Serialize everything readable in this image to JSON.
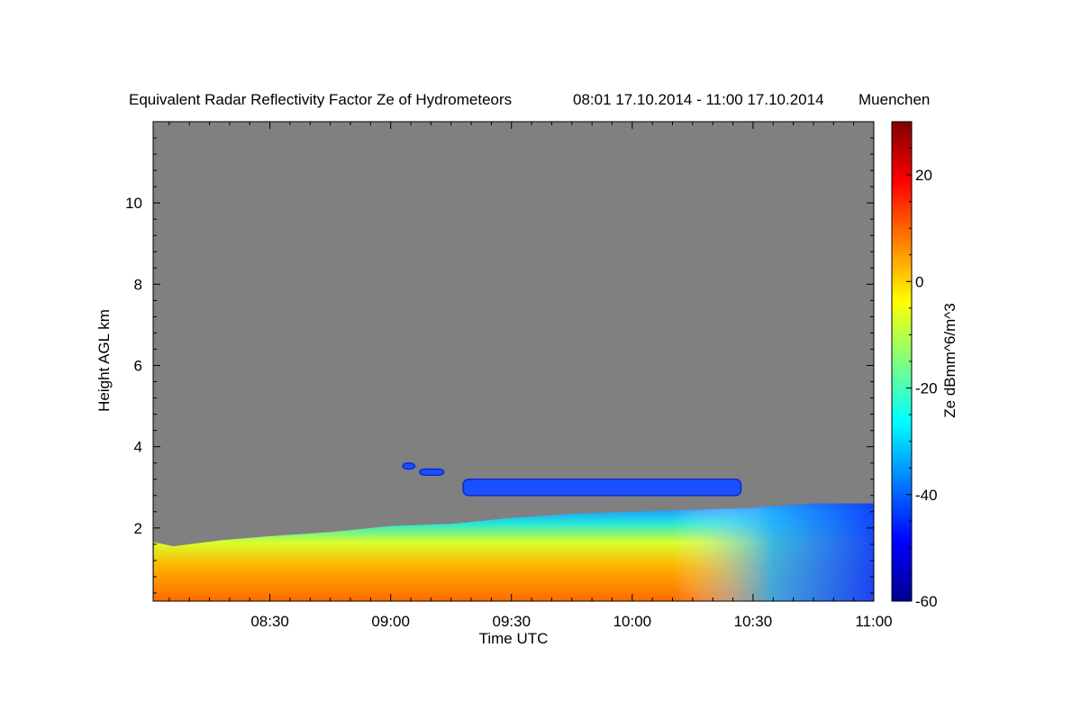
{
  "chart_data": {
    "type": "heatmap",
    "title": "Equivalent Radar Reflectivity Factor Ze of Hydrometeors",
    "time_range_label": "08:01 17.10.2014 - 11:00 17.10.2014",
    "location": "Muenchen",
    "xlabel": "Time UTC",
    "ylabel": "Height AGL km",
    "x_ticks": [
      "08:30",
      "09:00",
      "09:30",
      "10:00",
      "10:30",
      "11:00"
    ],
    "x_tick_hours": [
      8.5,
      9.0,
      9.5,
      10.0,
      10.5,
      11.0
    ],
    "xlim_hours": [
      8.0167,
      11.0
    ],
    "y_ticks": [
      "2",
      "4",
      "6",
      "8",
      "10"
    ],
    "y_tick_values": [
      2,
      4,
      6,
      8,
      10
    ],
    "ylim": [
      0.2,
      12.0
    ],
    "background_color": "#808080",
    "colorbar": {
      "label": "Ze dBmm^6/m^3",
      "range": [
        -60,
        30
      ],
      "ticks": [
        "20",
        "0",
        "-20",
        "-40",
        "-60"
      ],
      "tick_values": [
        20,
        0,
        -20,
        -40,
        -60
      ]
    },
    "echo_top_km": [
      {
        "t": 8.02,
        "h": 1.65
      },
      {
        "t": 8.1,
        "h": 1.55
      },
      {
        "t": 8.3,
        "h": 1.7
      },
      {
        "t": 8.5,
        "h": 1.8
      },
      {
        "t": 8.75,
        "h": 1.9
      },
      {
        "t": 9.0,
        "h": 2.05
      },
      {
        "t": 9.25,
        "h": 2.1
      },
      {
        "t": 9.5,
        "h": 2.25
      },
      {
        "t": 9.75,
        "h": 2.35
      },
      {
        "t": 10.0,
        "h": 2.4
      },
      {
        "t": 10.25,
        "h": 2.45
      },
      {
        "t": 10.5,
        "h": 2.5
      },
      {
        "t": 10.75,
        "h": 2.6
      },
      {
        "t": 11.0,
        "h": 2.6
      }
    ],
    "upper_layers": [
      {
        "t0": 9.3,
        "t1": 10.45,
        "h0": 2.8,
        "h1": 3.2,
        "ze": -35
      },
      {
        "t0": 9.05,
        "t1": 9.1,
        "h0": 3.45,
        "h1": 3.6,
        "ze": -40
      },
      {
        "t0": 9.12,
        "t1": 9.22,
        "h0": 3.3,
        "h1": 3.45,
        "ze": -40
      }
    ]
  }
}
